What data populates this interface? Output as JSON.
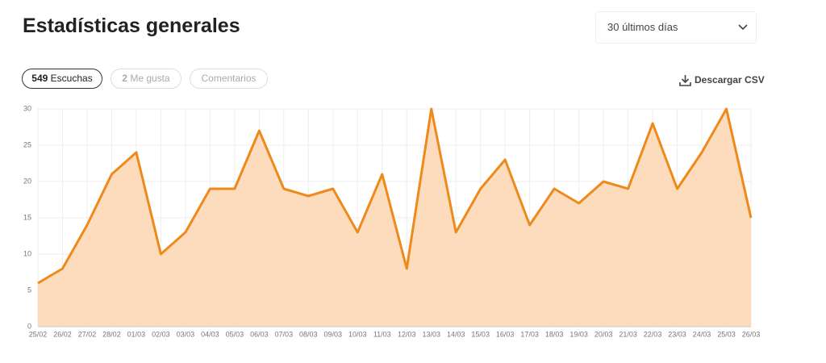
{
  "header": {
    "title": "Estadísticas generales",
    "period": "30 últimos días"
  },
  "tabs": [
    {
      "count": 549,
      "label": "Escuchas"
    },
    {
      "count": 2,
      "label": "Me gusta"
    },
    {
      "label": "Comentarios"
    }
  ],
  "download": "Descargar CSV",
  "chart_data": {
    "type": "area",
    "categories": [
      "25/02",
      "26/02",
      "27/02",
      "28/02",
      "01/03",
      "02/03",
      "03/03",
      "04/03",
      "05/03",
      "06/03",
      "07/03",
      "08/03",
      "09/03",
      "10/03",
      "11/03",
      "12/03",
      "13/03",
      "14/03",
      "15/03",
      "16/03",
      "17/03",
      "18/03",
      "19/03",
      "20/03",
      "21/03",
      "22/03",
      "23/03",
      "24/03",
      "25/03",
      "26/03"
    ],
    "values": [
      6,
      8,
      14,
      21,
      24,
      10,
      13,
      19,
      19,
      27,
      19,
      18,
      19,
      13,
      21,
      8,
      30,
      13,
      19,
      23,
      14,
      19,
      17,
      20,
      19,
      28,
      19,
      24,
      30,
      15
    ],
    "color": "#ee8a1c",
    "fill": "#fdd6b2",
    "ylim": [
      0,
      30
    ],
    "yticks": [
      0,
      5,
      10,
      15,
      20,
      25,
      30
    ],
    "grid": true
  }
}
